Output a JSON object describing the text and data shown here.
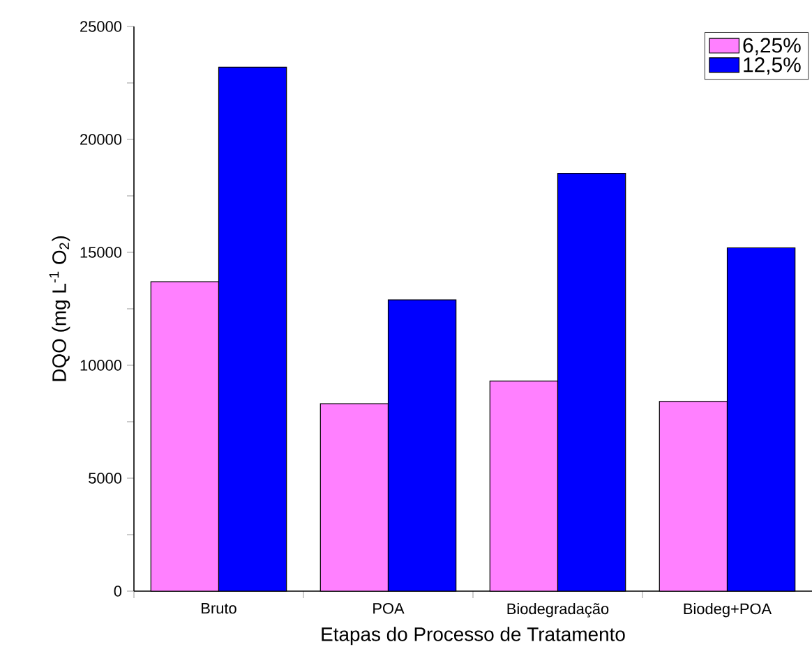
{
  "chart_data": {
    "type": "bar",
    "xlabel": "Etapas do Processo de Tratamento",
    "ylabel": "DQO (mg L$^{-1}$ O$_{2}$)",
    "categories": [
      "Bruto",
      "POA",
      "Biodegradação",
      "Biodeg+POA"
    ],
    "series": [
      {
        "name": "6,25%",
        "color": "#ff80ff",
        "values": [
          13700,
          8300,
          9300,
          8400
        ]
      },
      {
        "name": "12,5%",
        "color": "#0000ff",
        "values": [
          23200,
          12900,
          18500,
          15200
        ]
      }
    ],
    "ylim": [
      0,
      25000
    ],
    "yticks": [
      0,
      5000,
      10000,
      15000,
      20000,
      25000
    ],
    "legend": "top right",
    "grid": false
  }
}
